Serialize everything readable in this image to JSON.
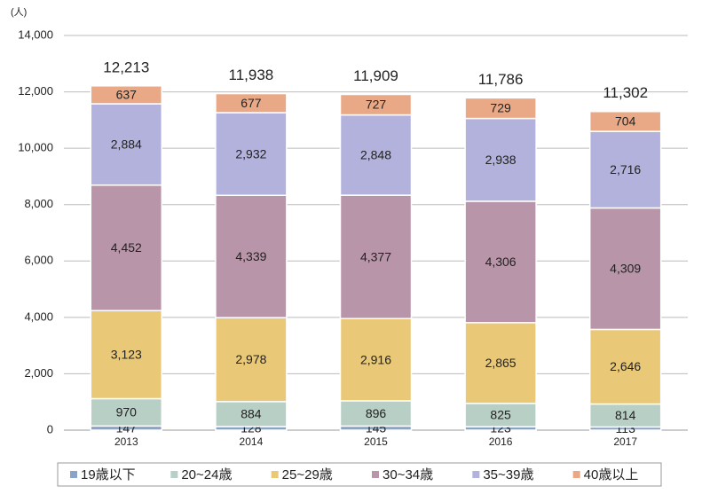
{
  "chart_data": {
    "type": "stacked_bar",
    "unit_label": "(人)",
    "categories": [
      "2013",
      "2014",
      "2015",
      "2016",
      "2017"
    ],
    "series": [
      {
        "name": "19歳以下",
        "color": "#8aa4c8",
        "values": [
          147,
          128,
          145,
          123,
          113
        ]
      },
      {
        "name": "20~24歳",
        "color": "#b8cfc5",
        "values": [
          970,
          884,
          896,
          825,
          814
        ],
        "value_labels": [
          "970",
          "884",
          "896",
          "825",
          "814"
        ]
      },
      {
        "name": "25~29歳",
        "color": "#e9c977",
        "values": [
          3123,
          2978,
          2916,
          2865,
          2646
        ],
        "value_labels": [
          "3,123",
          "2,978",
          "2,916",
          "2,865",
          "2,646"
        ]
      },
      {
        "name": "30~34歳",
        "color": "#b995a9",
        "values": [
          4452,
          4339,
          4377,
          4306,
          4309
        ],
        "value_labels": [
          "4,452",
          "4,339",
          "4,377",
          "4,306",
          "4,309"
        ]
      },
      {
        "name": "35~39歳",
        "color": "#b3b2dc",
        "values": [
          2884,
          2932,
          2848,
          2938,
          2716
        ],
        "value_labels": [
          "2,884",
          "2,932",
          "2,848",
          "2,938",
          "2,716"
        ]
      },
      {
        "name": "40歳以上",
        "color": "#eaa986",
        "values": [
          637,
          677,
          727,
          729,
          704
        ]
      }
    ],
    "totals": [
      12213,
      11938,
      11909,
      11786,
      11302
    ],
    "total_labels": [
      "12,213",
      "11,938",
      "11,909",
      "11,786",
      "11,302"
    ],
    "ylim": [
      0,
      14000
    ],
    "yticks": [
      0,
      {
        "value": 2000,
        "label": "2,000"
      },
      {
        "value": 4000,
        "label": "4,000"
      },
      {
        "value": 6000,
        "label": "6,000"
      },
      {
        "value": 8000,
        "label": "8,000"
      },
      {
        "value": 10000,
        "label": "10,000"
      },
      {
        "value": 12000,
        "label": "12,000"
      },
      {
        "value": 14000,
        "label": "14,000"
      }
    ],
    "grid": true,
    "legend": "bottom"
  }
}
